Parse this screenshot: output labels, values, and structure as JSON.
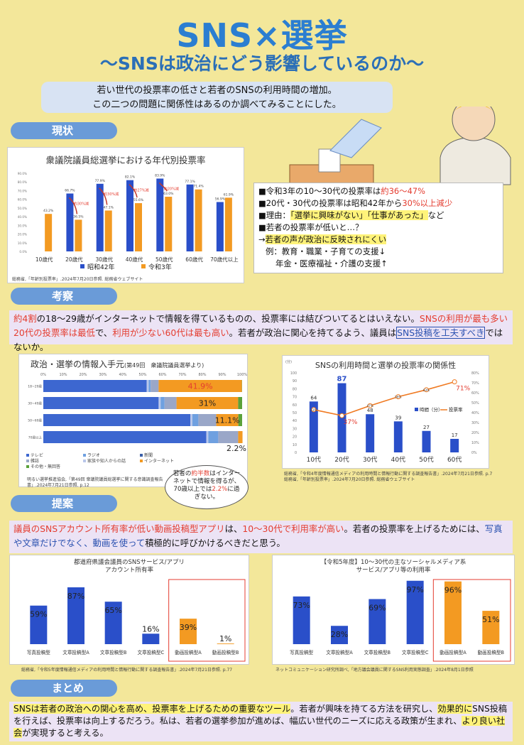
{
  "header": {
    "title": "SNS×選挙",
    "subtitle": "～SNSは政治にどう影響しているのか～",
    "intro": [
      "若い世代の投票率の低さと若者のSNSの利用時間の増加。",
      "この二つの問題に関係性はあるのか調べてみることにした。"
    ]
  },
  "sections": {
    "current": "現状",
    "analysis": "考察",
    "proposal": "提案",
    "summary": "まとめ"
  },
  "chart1": {
    "title": "衆議院議員総選挙における年代別投票率",
    "categories": [
      "10歳代",
      "20歳代",
      "30歳代",
      "40歳代",
      "50歳代",
      "60歳代",
      "70歳代以上"
    ],
    "s42": [
      null,
      66.7,
      77.9,
      82.1,
      83.9,
      77.1,
      56.9
    ],
    "r3": [
      43.2,
      36.5,
      47.1,
      55.6,
      63.0,
      71.4,
      61.9
    ],
    "s42_labels": [
      "",
      "66.7%",
      "77.9%",
      "82.1%",
      "83.9%",
      "77.1%",
      "56.9%"
    ],
    "r3_labels": [
      "43.2%",
      "36.5%",
      "47.1%",
      "55.6%",
      "63.0%",
      "71.4%",
      "61.9%"
    ],
    "diffs": [
      "",
      "約30%減",
      "約30%減",
      "約27%減",
      "約20%減",
      "",
      ""
    ],
    "yticks": [
      "0.0%",
      "10.0%",
      "20.0%",
      "30.0%",
      "40.0%",
      "50.0%",
      "60.0%",
      "70.0%",
      "80.0%",
      "90.0%"
    ],
    "legend": [
      "昭和42年",
      "令和3年"
    ],
    "source": "総務省,「年齢別投票率」.2024年7月20日参照. 総務省ウェブサイト",
    "colors": {
      "s42": "#2a4fc9",
      "r3": "#f39a22"
    }
  },
  "facts": {
    "b1_a": "■令和3年の10～30代の投票率は",
    "b1_b": "約36～47%",
    "b2_a": "■20代・30代の投票率は昭和42年から",
    "b2_b": "30%以上減少",
    "b3_a": "■理由：",
    "b3_b": "「選挙に興味がない」「仕事があった」",
    "b3_c": "など",
    "b4": "■若者の投票率が低いと…？",
    "b5_a": "→",
    "b5_b": "若者の声が政治に反映されにくい",
    "b6": "例：教育・職業・子育ての支援↓",
    "b7": "年金・医療福祉・介護の支援↑"
  },
  "analysis": {
    "p1": "約4割",
    "p2": "の18～29歳がインターネットで情報を得ているものの、投票率には結びついてるとはいえない。",
    "p3": "SNSの利用が最も多い20代の投票率は最低",
    "p4": "で、",
    "p5": "利用が少ない60代は最も高い",
    "p6": "。若者が政治に関心を持てるよう、議員は",
    "p7": "SNS投稿を工夫すべき",
    "p8": "ではないか。"
  },
  "chart2": {
    "title": "政治・選挙の情報入手元",
    "title_small": "(第49回　衆議院議員選挙より)",
    "rows": [
      "18~29歳",
      "30~49歳",
      "50~69歳",
      "70歳以上"
    ],
    "tv": [
      52,
      58,
      74,
      82
    ],
    "mag": [
      1,
      1,
      1,
      1
    ],
    "radio": [
      1,
      2,
      3,
      5
    ],
    "news": [
      4,
      6,
      9,
      10
    ],
    "net": [
      41.9,
      31,
      11.1,
      2.2
    ],
    "net_labels": [
      "41.9%",
      "31%",
      "11.1%",
      "2.2%"
    ],
    "xticks": [
      "0%",
      "10%",
      "20%",
      "30%",
      "40%",
      "50%",
      "60%",
      "70%",
      "80%",
      "90%",
      "100%"
    ],
    "legend": [
      "テレビ",
      "ラジオ",
      "新聞",
      "雑誌",
      "家族や知人からの話",
      "インターネット",
      "その他・無回答"
    ],
    "source": "明るい選挙推進協会,「第49回 衆議院議員総選挙に関する意識調査報告書」.2024年7月21日参照. p.12"
  },
  "callout": {
    "a": "若者の",
    "b": "約半数",
    "c": "はインターネットで情報を得るが、70歳以上では",
    "d": "2.2%",
    "e": "に過ぎない。"
  },
  "chart3": {
    "title": "SNSの利用時間と選挙の投票率の関係性",
    "unit": "(分)",
    "categories": [
      "10代",
      "20代",
      "30代",
      "40代",
      "50代",
      "60代"
    ],
    "minutes": [
      64,
      87,
      48,
      39,
      27,
      17
    ],
    "turnout_labels": [
      "43%",
      "37%",
      "47%",
      "56%",
      "63%",
      "71%"
    ],
    "turnout": [
      43,
      37,
      47,
      56,
      63,
      71
    ],
    "yticks_left": [
      "0",
      "10",
      "20",
      "30",
      "40",
      "50",
      "60",
      "70",
      "80",
      "90",
      "100"
    ],
    "yticks_right": [
      "0%",
      "10%",
      "20%",
      "30%",
      "40%",
      "50%",
      "60%",
      "70%",
      "80%"
    ],
    "legend": [
      "時間（分）",
      "投票率"
    ],
    "source": [
      "総務省,「令和4年度情報通信メディアの利用時間と情報行動に関する調査報告書」.2024年7月21日参照. p.7",
      "総務省,「年齢別投票率」.2024年7月20日参照. 総務省ウェブサイト"
    ]
  },
  "proposal": {
    "p1": "議員のSNSアカウント所有率が低い動画投稿型アプリ",
    "p2": "は、",
    "p3": "10～30代で利用率が高い",
    "p4": "。若者の投票率を上げるためには、",
    "p5": "写真や文章だけでなく、動画を使って",
    "p6": "積極的に呼びかけるべきだと思う。"
  },
  "chart4": {
    "title": [
      "都道府県議会議員のSNSサービス/アプリ",
      "アカウント所有率"
    ],
    "categories": [
      "写真投稿型",
      "文章投稿型A",
      "文章投稿型B",
      "文章投稿型C",
      "動画投稿型A",
      "動画投稿型B"
    ],
    "values": [
      59,
      87,
      65,
      16,
      39,
      1
    ],
    "labels": [
      "59%",
      "87%",
      "65%",
      "16%",
      "39%",
      "1%"
    ],
    "source": "総務省,「令和5年度情報通信メディアの利用時間と情報行動に関する調査報告書」.2024年7月21日参照. p.77"
  },
  "chart5": {
    "title": [
      "【令和5年度】10～30代の主なソーシャルメディア系",
      "サービス/アプリ等の利用率"
    ],
    "categories": [
      "写真投稿型",
      "文章投稿型A",
      "文章投稿型B",
      "文章投稿型C",
      "動画投稿型A",
      "動画投稿型B"
    ],
    "values": [
      73,
      28,
      69,
      97,
      96,
      51
    ],
    "labels": [
      "73%",
      "28%",
      "69%",
      "97%",
      "96%",
      "51%"
    ],
    "source": "ネットコミュニケーション研究所調べ,「地方議会議員に関するSNS利用実態調査」.2024年8月1日参照"
  },
  "summary": {
    "s1": "SNSは若者の政治への関心を高め、投票率を上げるための重要なツール",
    "s2": "。若者が興味を持てる方法を研究し、",
    "s3": "効果的に",
    "s4": "SNS投稿を行えば、投票率は向上するだろう。私は、若者の選挙参加が進めば、幅広い世代のニーズに応える政策が生まれ、",
    "s5": "より良い社会",
    "s6": "が実現すると考える。"
  }
}
